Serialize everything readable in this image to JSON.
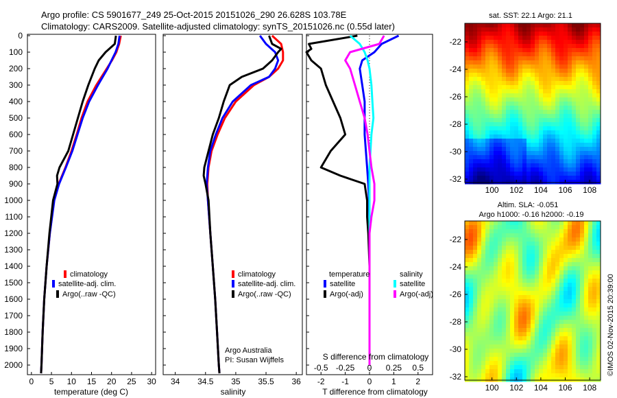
{
  "header": {
    "line1": "Argo profile: CS 5901677_249 25-Oct-2015 20151026_290 26.628S 103.78E",
    "line2": "Climatology: CARS2009. Satellite-adjusted climatology: synTS_20151026.nc (0.55d later)"
  },
  "colors": {
    "climatology": "#ff0000",
    "satellite": "#0000ff",
    "argo": "#000000",
    "sal_satellite": "#00ffff",
    "sal_argo": "#ff00ff"
  },
  "depth_ticks": [
    0,
    100,
    200,
    300,
    400,
    500,
    600,
    700,
    800,
    900,
    1000,
    1100,
    1200,
    1300,
    1400,
    1500,
    1600,
    1700,
    1800,
    1900,
    2000
  ],
  "panels": {
    "temperature": {
      "xlabel": "temperature (deg C)",
      "xticks": [
        0,
        5,
        10,
        15,
        20,
        25,
        30
      ],
      "legend": [
        "climatology",
        "satellite-adj. clim.",
        "Argo(..raw -QC)"
      ]
    },
    "salinity": {
      "xlabel": "salinity",
      "xticks": [
        "34",
        "34.5",
        "35",
        "35.5",
        "36"
      ],
      "legend": [
        "climatology",
        "satellite-adj. clim.",
        "Argo(..raw -QC)"
      ],
      "credit1": "Argo Australia",
      "credit2": "PI: Susan Wijffels"
    },
    "difference": {
      "xlabel": "T difference from climatology",
      "top_label": "S difference from climatology",
      "top_ticks": [
        "-0.5",
        "-0.25",
        "0",
        "0.25",
        "0.5"
      ],
      "xticks": [
        "-2",
        "-1",
        "0",
        "1",
        "2"
      ],
      "legend_temp_title": "temperature",
      "legend_sal_title": "salinity",
      "legend_temp": [
        "satellite",
        "Argo(-adj)"
      ],
      "legend_sal": [
        "satellite",
        "Argo(-adj)"
      ]
    }
  },
  "maps": {
    "sst_title": "sat. SST: 22.1  Argo: 21.1",
    "sla_title1": "Altim. SLA: -0.051",
    "sla_title2": "Argo h1000: -0.16 h2000: -0.19",
    "xticks": [
      "100",
      "102",
      "104",
      "106",
      "108"
    ],
    "yticks": [
      "-22",
      "-24",
      "-26",
      "-28",
      "-30",
      "-32"
    ]
  },
  "footer": {
    "imos": "©IMOS 02-Nov-2015 20:39:00"
  },
  "chart_data": [
    {
      "type": "line",
      "title": "",
      "xlabel": "temperature (deg C)",
      "ylabel": "",
      "xlim": [
        -1,
        31
      ],
      "ylim": [
        2050,
        0
      ],
      "series": [
        {
          "name": "climatology",
          "depth": [
            0,
            50,
            100,
            150,
            200,
            300,
            400,
            500,
            600,
            700,
            800,
            900,
            1000,
            1200,
            1400,
            1600,
            1800,
            2000,
            2050
          ],
          "values": [
            22.3,
            21.9,
            21.2,
            20.1,
            18.8,
            16.2,
            14.0,
            12.5,
            11.3,
            10.0,
            8.5,
            6.8,
            5.6,
            4.6,
            3.8,
            3.2,
            2.8,
            2.5,
            2.4
          ]
        },
        {
          "name": "satellite-adj. clim.",
          "depth": [
            0,
            50,
            100,
            150,
            200,
            300,
            400,
            500,
            600,
            700,
            800,
            900,
            1000,
            1200,
            1400,
            1600,
            1800,
            2000,
            2050
          ],
          "values": [
            22.0,
            21.7,
            21.0,
            20.0,
            19.0,
            16.6,
            14.4,
            12.8,
            11.5,
            10.2,
            8.6,
            6.9,
            5.7,
            4.6,
            3.8,
            3.2,
            2.8,
            2.5,
            2.4
          ]
        },
        {
          "name": "Argo(..raw -QC)",
          "depth": [
            0,
            50,
            100,
            150,
            200,
            250,
            300,
            350,
            400,
            500,
            600,
            700,
            800,
            850,
            900,
            1000,
            1200,
            1400,
            1600,
            1800,
            2000,
            2050
          ],
          "values": [
            21.1,
            20.8,
            18.5,
            16.8,
            15.8,
            15.0,
            14.2,
            13.5,
            12.8,
            11.6,
            10.4,
            9.2,
            7.0,
            6.4,
            6.5,
            5.4,
            4.5,
            3.8,
            3.2,
            2.8,
            2.5,
            2.4
          ]
        }
      ]
    },
    {
      "type": "line",
      "title": "",
      "xlabel": "salinity",
      "ylabel": "",
      "xlim": [
        33.8,
        36.1
      ],
      "ylim": [
        2050,
        0
      ],
      "series": [
        {
          "name": "climatology",
          "depth": [
            0,
            50,
            100,
            150,
            200,
            250,
            300,
            400,
            500,
            600,
            700,
            800,
            900,
            1000,
            1200,
            1400,
            1600,
            1800,
            2000,
            2050
          ],
          "values": [
            35.6,
            35.75,
            35.78,
            35.78,
            35.7,
            35.55,
            35.3,
            35.0,
            34.82,
            34.7,
            34.6,
            34.55,
            34.53,
            34.54,
            34.58,
            34.62,
            34.66,
            34.69,
            34.72,
            34.73
          ]
        },
        {
          "name": "satellite-adj. clim.",
          "depth": [
            0,
            50,
            100,
            150,
            200,
            250,
            300,
            400,
            500,
            600,
            700,
            800,
            900,
            1000,
            1200,
            1400,
            1600,
            1800,
            2000,
            2050
          ],
          "values": [
            35.4,
            35.5,
            35.65,
            35.7,
            35.65,
            35.55,
            35.25,
            34.95,
            34.78,
            34.67,
            34.58,
            34.54,
            34.52,
            34.54,
            34.58,
            34.62,
            34.66,
            34.69,
            34.72,
            34.73
          ]
        },
        {
          "name": "Argo(..raw -QC)",
          "depth": [
            0,
            50,
            80,
            100,
            150,
            200,
            250,
            300,
            350,
            400,
            500,
            600,
            700,
            800,
            850,
            900,
            1000,
            1200,
            1400,
            1600,
            1800,
            2000,
            2050
          ],
          "values": [
            35.55,
            35.6,
            35.75,
            35.7,
            35.6,
            35.45,
            35.1,
            34.9,
            34.85,
            34.8,
            34.72,
            34.62,
            34.55,
            34.48,
            34.47,
            34.5,
            34.55,
            34.58,
            34.62,
            34.66,
            34.69,
            34.72,
            34.73
          ]
        }
      ]
    },
    {
      "type": "line",
      "title": "",
      "xlabel": "T difference from climatology",
      "ylabel": "",
      "xlim": [
        -2.6,
        2.6
      ],
      "ylim": [
        2050,
        0
      ],
      "series": [
        {
          "name": "satellite",
          "axis": "T",
          "depth": [
            0,
            50,
            100,
            150,
            200,
            300,
            400,
            500,
            600,
            700,
            800,
            900,
            1000,
            1200,
            1400,
            1600,
            1800,
            2000
          ],
          "values": [
            1.2,
            0.5,
            0.2,
            -0.3,
            -0.4,
            -0.3,
            -0.2,
            -0.2,
            -0.2,
            -0.15,
            -0.1,
            -0.05,
            -0.02,
            0,
            0,
            0,
            0,
            0
          ]
        },
        {
          "name": "Argo(-adj)",
          "axis": "T",
          "depth": [
            0,
            50,
            80,
            100,
            150,
            200,
            300,
            400,
            500,
            600,
            700,
            800,
            850,
            900,
            1000,
            1100,
            1200,
            1400,
            1600,
            1800,
            2000
          ],
          "values": [
            -0.5,
            -2.5,
            -2.4,
            -2.6,
            -2.4,
            -2.0,
            -1.8,
            -1.5,
            -1.2,
            -1.0,
            -1.6,
            -2.0,
            -1.2,
            -0.2,
            -0.1,
            -0.1,
            -0.05,
            0,
            0,
            0,
            0
          ]
        },
        {
          "name": "satellite",
          "axis": "S",
          "depth": [
            0,
            50,
            100,
            150,
            200,
            300,
            400,
            500,
            600,
            700,
            800,
            900,
            1000,
            1200,
            1400,
            1600,
            1800,
            2000
          ],
          "values": [
            -0.2,
            -0.1,
            -0.05,
            -0.02,
            0.0,
            0.02,
            0.03,
            0.04,
            0.02,
            0.01,
            0.0,
            0.0,
            0.0,
            0.0,
            0.0,
            0.0,
            0.0,
            0.0
          ]
        },
        {
          "name": "Argo(-adj)",
          "axis": "S",
          "depth": [
            0,
            50,
            100,
            150,
            200,
            300,
            400,
            500,
            600,
            700,
            800,
            900,
            1000,
            1100,
            1200,
            1400,
            1600,
            1800,
            2000
          ],
          "values": [
            0.15,
            0.1,
            -0.2,
            -0.25,
            -0.2,
            -0.15,
            -0.1,
            -0.05,
            -0.02,
            0.0,
            0.02,
            0.05,
            0.05,
            0.02,
            0.0,
            0.0,
            0.0,
            0.0,
            0.0
          ]
        }
      ]
    }
  ]
}
